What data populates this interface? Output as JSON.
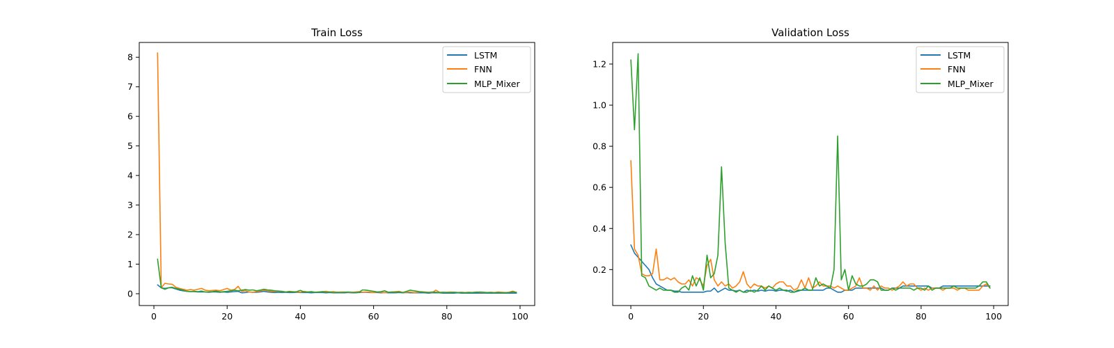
{
  "chart_data": [
    {
      "type": "line",
      "title": "Train Loss",
      "xlabel": "",
      "ylabel": "",
      "xlim": [
        -4,
        104
      ],
      "ylim": [
        -0.4,
        8.5
      ],
      "xticks": [
        0,
        20,
        40,
        60,
        80,
        100
      ],
      "yticks": [
        0,
        1,
        2,
        3,
        4,
        5,
        6,
        7,
        8
      ],
      "grid": false,
      "legend": "top-right",
      "x": [
        1,
        2,
        3,
        4,
        5,
        6,
        7,
        8,
        9,
        10,
        11,
        12,
        13,
        14,
        15,
        16,
        17,
        18,
        19,
        20,
        21,
        22,
        23,
        24,
        25,
        26,
        27,
        28,
        29,
        30,
        31,
        32,
        33,
        34,
        35,
        36,
        37,
        38,
        39,
        40,
        41,
        42,
        43,
        44,
        45,
        46,
        47,
        48,
        49,
        50,
        51,
        52,
        53,
        54,
        55,
        56,
        57,
        58,
        59,
        60,
        61,
        62,
        63,
        64,
        65,
        66,
        67,
        68,
        69,
        70,
        71,
        72,
        73,
        74,
        75,
        76,
        77,
        78,
        79,
        80,
        81,
        82,
        83,
        84,
        85,
        86,
        87,
        88,
        89,
        90,
        91,
        92,
        93,
        94,
        95,
        96,
        97,
        98,
        99
      ],
      "series": [
        {
          "name": "LSTM",
          "color": "#1f77b4",
          "values": [
            0.3,
            0.2,
            0.18,
            0.2,
            0.2,
            0.16,
            0.12,
            0.1,
            0.08,
            0.07,
            0.07,
            0.06,
            0.06,
            0.06,
            0.05,
            0.06,
            0.06,
            0.05,
            0.06,
            0.05,
            0.06,
            0.07,
            0.08,
            0.03,
            0.04,
            0.06,
            0.05,
            0.05,
            0.06,
            0.08,
            0.06,
            0.05,
            0.04,
            0.05,
            0.04,
            0.05,
            0.04,
            0.04,
            0.05,
            0.04,
            0.04,
            0.04,
            0.03,
            0.04,
            0.04,
            0.04,
            0.03,
            0.04,
            0.03,
            0.03,
            0.03,
            0.03,
            0.04,
            0.03,
            0.03,
            0.04,
            0.05,
            0.05,
            0.04,
            0.04,
            0.04,
            0.03,
            0.04,
            0.03,
            0.03,
            0.03,
            0.04,
            0.03,
            0.04,
            0.03,
            0.03,
            0.03,
            0.03,
            0.03,
            0.02,
            0.03,
            0.03,
            0.03,
            0.02,
            0.02,
            0.02,
            0.02,
            0.03,
            0.02,
            0.02,
            0.02,
            0.02,
            0.02,
            0.02,
            0.02,
            0.02,
            0.02,
            0.02,
            0.02,
            0.02,
            0.02,
            0.02,
            0.02,
            0.02
          ]
        },
        {
          "name": "FNN",
          "color": "#ff7f0e",
          "values": [
            8.15,
            0.2,
            0.35,
            0.33,
            0.32,
            0.22,
            0.18,
            0.15,
            0.12,
            0.14,
            0.12,
            0.15,
            0.18,
            0.12,
            0.1,
            0.11,
            0.12,
            0.1,
            0.14,
            0.18,
            0.12,
            0.14,
            0.25,
            0.08,
            0.1,
            0.06,
            0.05,
            0.07,
            0.09,
            0.12,
            0.1,
            0.08,
            0.07,
            0.09,
            0.07,
            0.06,
            0.08,
            0.07,
            0.06,
            0.05,
            0.08,
            0.06,
            0.07,
            0.05,
            0.06,
            0.07,
            0.08,
            0.06,
            0.07,
            0.05,
            0.06,
            0.06,
            0.05,
            0.04,
            0.06,
            0.07,
            0.05,
            0.06,
            0.05,
            0.04,
            0.06,
            0.05,
            0.04,
            0.05,
            0.06,
            0.07,
            0.08,
            0.04,
            0.05,
            0.06,
            0.04,
            0.05,
            0.07,
            0.06,
            0.05,
            0.04,
            0.12,
            0.05,
            0.04,
            0.05,
            0.06,
            0.05,
            0.04,
            0.05,
            0.04,
            0.05,
            0.04,
            0.06,
            0.05,
            0.04,
            0.04,
            0.05,
            0.04,
            0.06,
            0.05,
            0.04,
            0.05,
            0.09,
            0.04
          ]
        },
        {
          "name": "MLP_Mixer",
          "color": "#2ca02c",
          "values": [
            1.17,
            0.2,
            0.15,
            0.2,
            0.22,
            0.18,
            0.15,
            0.12,
            0.08,
            0.07,
            0.08,
            0.07,
            0.09,
            0.06,
            0.06,
            0.07,
            0.09,
            0.06,
            0.07,
            0.08,
            0.1,
            0.12,
            0.1,
            0.12,
            0.14,
            0.12,
            0.13,
            0.1,
            0.12,
            0.15,
            0.13,
            0.12,
            0.1,
            0.09,
            0.08,
            0.06,
            0.07,
            0.06,
            0.07,
            0.11,
            0.06,
            0.06,
            0.07,
            0.05,
            0.06,
            0.07,
            0.05,
            0.06,
            0.04,
            0.05,
            0.04,
            0.05,
            0.06,
            0.05,
            0.04,
            0.05,
            0.13,
            0.12,
            0.1,
            0.08,
            0.06,
            0.07,
            0.1,
            0.05,
            0.06,
            0.05,
            0.06,
            0.04,
            0.08,
            0.12,
            0.1,
            0.08,
            0.06,
            0.05,
            0.04,
            0.06,
            0.05,
            0.04,
            0.05,
            0.04,
            0.04,
            0.05,
            0.04,
            0.04,
            0.03,
            0.04,
            0.04,
            0.05,
            0.06,
            0.05,
            0.04,
            0.04,
            0.03,
            0.04,
            0.03,
            0.03,
            0.04,
            0.06,
            0.05
          ]
        }
      ]
    },
    {
      "type": "line",
      "title": "Validation Loss",
      "xlabel": "",
      "ylabel": "",
      "xlim": [
        -5,
        104
      ],
      "ylim": [
        0.025,
        1.305
      ],
      "xticks": [
        0,
        20,
        40,
        60,
        80,
        100
      ],
      "yticks": [
        0.2,
        0.4,
        0.6,
        0.8,
        1.0,
        1.2
      ],
      "grid": false,
      "legend": "top-right",
      "x": [
        0,
        1,
        2,
        3,
        4,
        5,
        6,
        7,
        8,
        9,
        10,
        11,
        12,
        13,
        14,
        15,
        16,
        17,
        18,
        19,
        20,
        21,
        22,
        23,
        24,
        25,
        26,
        27,
        28,
        29,
        30,
        31,
        32,
        33,
        34,
        35,
        36,
        37,
        38,
        39,
        40,
        41,
        42,
        43,
        44,
        45,
        46,
        47,
        48,
        49,
        50,
        51,
        52,
        53,
        54,
        55,
        56,
        57,
        58,
        59,
        60,
        61,
        62,
        63,
        64,
        65,
        66,
        67,
        68,
        69,
        70,
        71,
        72,
        73,
        74,
        75,
        76,
        77,
        78,
        79,
        80,
        81,
        82,
        83,
        84,
        85,
        86,
        87,
        88,
        89,
        90,
        91,
        92,
        93,
        94,
        95,
        96,
        97,
        98,
        99
      ],
      "series": [
        {
          "name": "LSTM",
          "color": "#1f77b4",
          "values": [
            0.32,
            0.28,
            0.26,
            0.24,
            0.22,
            0.2,
            0.16,
            0.13,
            0.12,
            0.11,
            0.1,
            0.1,
            0.095,
            0.095,
            0.09,
            0.09,
            0.09,
            0.09,
            0.09,
            0.09,
            0.09,
            0.095,
            0.095,
            0.11,
            0.09,
            0.1,
            0.11,
            0.1,
            0.1,
            0.095,
            0.1,
            0.09,
            0.1,
            0.095,
            0.1,
            0.095,
            0.1,
            0.095,
            0.1,
            0.1,
            0.095,
            0.1,
            0.1,
            0.095,
            0.1,
            0.09,
            0.095,
            0.1,
            0.1,
            0.1,
            0.1,
            0.1,
            0.1,
            0.1,
            0.11,
            0.11,
            0.1,
            0.09,
            0.09,
            0.1,
            0.1,
            0.1,
            0.11,
            0.11,
            0.11,
            0.11,
            0.11,
            0.11,
            0.11,
            0.11,
            0.1,
            0.1,
            0.11,
            0.11,
            0.11,
            0.12,
            0.12,
            0.12,
            0.12,
            0.12,
            0.12,
            0.12,
            0.12,
            0.11,
            0.11,
            0.11,
            0.12,
            0.12,
            0.12,
            0.12,
            0.12,
            0.12,
            0.12,
            0.12,
            0.12,
            0.12,
            0.12,
            0.12,
            0.12,
            0.12
          ]
        },
        {
          "name": "FNN",
          "color": "#ff7f0e",
          "values": [
            0.73,
            0.3,
            0.27,
            0.18,
            0.17,
            0.17,
            0.18,
            0.3,
            0.15,
            0.15,
            0.16,
            0.15,
            0.16,
            0.14,
            0.13,
            0.13,
            0.15,
            0.12,
            0.16,
            0.15,
            0.12,
            0.22,
            0.25,
            0.15,
            0.12,
            0.14,
            0.12,
            0.13,
            0.11,
            0.12,
            0.14,
            0.19,
            0.13,
            0.11,
            0.13,
            0.12,
            0.12,
            0.11,
            0.12,
            0.11,
            0.13,
            0.14,
            0.14,
            0.12,
            0.12,
            0.1,
            0.11,
            0.15,
            0.11,
            0.16,
            0.11,
            0.12,
            0.14,
            0.12,
            0.12,
            0.12,
            0.11,
            0.12,
            0.11,
            0.1,
            0.1,
            0.11,
            0.12,
            0.16,
            0.11,
            0.11,
            0.1,
            0.12,
            0.1,
            0.12,
            0.11,
            0.11,
            0.1,
            0.11,
            0.12,
            0.14,
            0.12,
            0.13,
            0.13,
            0.11,
            0.1,
            0.11,
            0.1,
            0.11,
            0.11,
            0.11,
            0.1,
            0.11,
            0.11,
            0.11,
            0.1,
            0.11,
            0.11,
            0.1,
            0.1,
            0.1,
            0.1,
            0.12,
            0.13,
            0.11
          ]
        },
        {
          "name": "MLP_Mixer",
          "color": "#2ca02c",
          "values": [
            1.22,
            0.88,
            1.25,
            0.17,
            0.16,
            0.12,
            0.11,
            0.1,
            0.11,
            0.1,
            0.1,
            0.1,
            0.09,
            0.09,
            0.11,
            0.12,
            0.1,
            0.17,
            0.12,
            0.16,
            0.1,
            0.27,
            0.16,
            0.18,
            0.27,
            0.7,
            0.33,
            0.11,
            0.1,
            0.09,
            0.1,
            0.09,
            0.09,
            0.1,
            0.09,
            0.1,
            0.12,
            0.1,
            0.12,
            0.11,
            0.1,
            0.11,
            0.1,
            0.1,
            0.09,
            0.09,
            0.1,
            0.1,
            0.11,
            0.1,
            0.1,
            0.16,
            0.12,
            0.13,
            0.12,
            0.11,
            0.2,
            0.85,
            0.15,
            0.2,
            0.1,
            0.17,
            0.13,
            0.12,
            0.12,
            0.13,
            0.15,
            0.15,
            0.14,
            0.1,
            0.1,
            0.1,
            0.11,
            0.1,
            0.11,
            0.11,
            0.11,
            0.11,
            0.1,
            0.11,
            0.11,
            0.1,
            0.12,
            0.1,
            0.11,
            0.11,
            0.11,
            0.11,
            0.11,
            0.12,
            0.11,
            0.11,
            0.11,
            0.11,
            0.11,
            0.11,
            0.12,
            0.14,
            0.14,
            0.11
          ]
        }
      ]
    }
  ]
}
